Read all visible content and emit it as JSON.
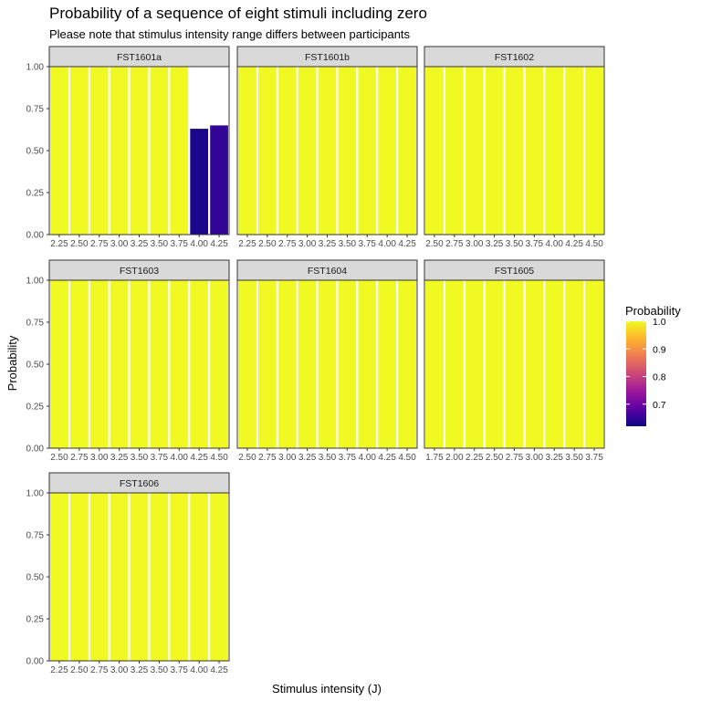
{
  "chart_data": {
    "type": "bar",
    "title": "Probability of a sequence of eight stimuli including zero",
    "subtitle": "Please note that stimulus intensity range differs between participants",
    "xlabel": "Stimulus intensity (J)",
    "ylabel": "Probability",
    "ylim": [
      0,
      1
    ],
    "yticks": [
      "0.00",
      "0.25",
      "0.50",
      "0.75",
      "1.00"
    ],
    "facets": [
      {
        "name": "FST1601a",
        "x": [
          "2.25",
          "2.50",
          "2.75",
          "3.00",
          "3.25",
          "3.50",
          "3.75",
          "4.00",
          "4.25"
        ],
        "values": [
          1,
          1,
          1,
          1,
          1,
          1,
          1,
          0.63,
          0.65
        ]
      },
      {
        "name": "FST1601b",
        "x": [
          "2.25",
          "2.50",
          "2.75",
          "3.00",
          "3.25",
          "3.50",
          "3.75",
          "4.00",
          "4.25"
        ],
        "values": [
          1,
          1,
          1,
          1,
          1,
          1,
          1,
          1,
          1
        ]
      },
      {
        "name": "FST1602",
        "x": [
          "2.50",
          "2.75",
          "3.00",
          "3.25",
          "3.50",
          "3.75",
          "4.00",
          "4.25",
          "4.50"
        ],
        "values": [
          1,
          1,
          1,
          1,
          1,
          1,
          1,
          1,
          1
        ]
      },
      {
        "name": "FST1603",
        "x": [
          "2.50",
          "2.75",
          "3.00",
          "3.25",
          "3.50",
          "3.75",
          "4.00",
          "4.25",
          "4.50"
        ],
        "values": [
          1,
          1,
          1,
          1,
          1,
          1,
          1,
          1,
          1
        ]
      },
      {
        "name": "FST1604",
        "x": [
          "2.50",
          "2.75",
          "3.00",
          "3.25",
          "3.50",
          "3.75",
          "4.00",
          "4.25",
          "4.50"
        ],
        "values": [
          1,
          1,
          1,
          1,
          1,
          1,
          1,
          1,
          1
        ]
      },
      {
        "name": "FST1605",
        "x": [
          "1.75",
          "2.00",
          "2.25",
          "2.50",
          "2.75",
          "3.00",
          "3.25",
          "3.50",
          "3.75"
        ],
        "values": [
          1,
          1,
          1,
          1,
          1,
          1,
          1,
          1,
          1
        ]
      },
      {
        "name": "FST1606",
        "x": [
          "2.25",
          "2.50",
          "2.75",
          "3.00",
          "3.25",
          "3.50",
          "3.75",
          "4.00",
          "4.25"
        ],
        "values": [
          1,
          1,
          1,
          1,
          1,
          1,
          1,
          1,
          1
        ]
      }
    ],
    "legend": {
      "title": "Probability",
      "placement": "right",
      "range": [
        0.62,
        1.0
      ],
      "ticks": [
        "0.7",
        "0.8",
        "0.9",
        "1.0"
      ],
      "colormap": "plasma"
    },
    "colors": {
      "strip_fill": "#d9d9d9",
      "panel_border": "#333333",
      "bar_gap": "#ffffff",
      "plasma_stops": [
        "#0d0887",
        "#5c01a6",
        "#9c179e",
        "#cc4778",
        "#ed7953",
        "#fdb42f",
        "#f0f921"
      ]
    }
  }
}
